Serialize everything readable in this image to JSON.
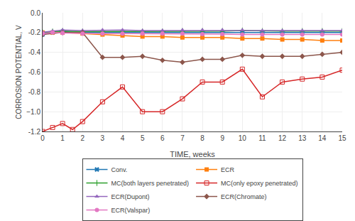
{
  "chart_data": {
    "type": "line",
    "xlabel": "TIME, weeks",
    "ylabel": "CORROSION POTENTIAL, V",
    "xlim": [
      0,
      15
    ],
    "ylim": [
      -1.2,
      0.0
    ],
    "xticks": [
      0,
      1,
      2,
      3,
      4,
      5,
      6,
      7,
      8,
      9,
      10,
      11,
      12,
      13,
      14,
      15
    ],
    "yticks": [
      {
        "value": 0.0,
        "label": "0.0"
      },
      -0.2,
      -0.4,
      -0.6,
      -0.8,
      {
        "value": -1.0,
        "label": "−1.0"
      },
      -1.2
    ],
    "grid": true,
    "legend": "bottom",
    "series": [
      {
        "name": "Conv.",
        "marker": "x",
        "x": [
          0,
          0.5,
          1,
          2,
          3,
          4,
          5,
          6,
          7,
          8,
          9,
          10,
          11,
          12,
          13,
          14,
          15
        ],
        "values": [
          -0.22,
          -0.2,
          -0.19,
          -0.2,
          -0.2,
          -0.2,
          -0.2,
          -0.2,
          -0.2,
          -0.2,
          -0.2,
          -0.2,
          -0.2,
          -0.2,
          -0.2,
          -0.2,
          -0.2
        ]
      },
      {
        "name": "ECR",
        "marker": "square",
        "x": [
          0,
          0.5,
          1,
          2,
          3,
          4,
          5,
          6,
          7,
          8,
          9,
          10,
          11,
          12,
          13,
          14,
          15
        ],
        "values": [
          -0.2,
          -0.2,
          -0.2,
          -0.21,
          -0.22,
          -0.23,
          -0.24,
          -0.24,
          -0.25,
          -0.25,
          -0.25,
          -0.26,
          -0.26,
          -0.27,
          -0.27,
          -0.28,
          -0.28
        ]
      },
      {
        "name": "MC(both layers penetrated)",
        "marker": "cross",
        "x": [
          0,
          0.5,
          1,
          2,
          3,
          4,
          5,
          6,
          7,
          8,
          9,
          10,
          11,
          12,
          13,
          14,
          15
        ],
        "values": [
          -0.2,
          -0.19,
          -0.185,
          -0.19,
          -0.19,
          -0.19,
          -0.19,
          -0.19,
          -0.185,
          -0.185,
          -0.185,
          -0.18,
          -0.185,
          -0.185,
          -0.185,
          -0.185,
          -0.185
        ]
      },
      {
        "name": "MC(only epoxy penetrated)",
        "marker": "square-open",
        "x": [
          0,
          0.5,
          1,
          1.5,
          2,
          3,
          4,
          5,
          6,
          7,
          8,
          9,
          10,
          11,
          12,
          13,
          14,
          15
        ],
        "values": [
          -1.2,
          -1.16,
          -1.12,
          -1.18,
          -1.1,
          -0.9,
          -0.75,
          -1.0,
          -1.0,
          -0.87,
          -0.7,
          -0.7,
          -0.57,
          -0.85,
          -0.7,
          -0.67,
          -0.65,
          -0.58
        ]
      },
      {
        "name": "ECR(Dupont)",
        "marker": "triangle-up",
        "x": [
          0,
          0.5,
          1,
          2,
          3,
          4,
          5,
          6,
          7,
          8,
          9,
          10,
          11,
          12,
          13,
          14,
          15
        ],
        "values": [
          -0.195,
          -0.185,
          -0.175,
          -0.18,
          -0.175,
          -0.175,
          -0.18,
          -0.18,
          -0.175,
          -0.175,
          -0.175,
          -0.175,
          -0.18,
          -0.18,
          -0.18,
          -0.18,
          -0.18
        ]
      },
      {
        "name": "ECR(Chromate)",
        "marker": "diamond",
        "x": [
          0,
          1,
          2,
          3,
          4,
          5,
          6,
          7,
          8,
          9,
          10,
          11,
          12,
          13,
          14,
          15
        ],
        "values": [
          -0.22,
          -0.2,
          -0.2,
          -0.45,
          -0.45,
          -0.44,
          -0.48,
          -0.5,
          -0.47,
          -0.47,
          -0.43,
          -0.44,
          -0.44,
          -0.44,
          -0.42,
          -0.4
        ]
      },
      {
        "name": "ECR(Valspar)",
        "marker": "circle",
        "x": [
          0,
          0.5,
          1,
          2,
          3,
          4,
          5,
          6,
          7,
          8,
          9,
          10,
          11,
          12,
          13,
          14,
          15
        ],
        "values": [
          -0.21,
          -0.2,
          -0.205,
          -0.21,
          -0.21,
          -0.21,
          -0.21,
          -0.21,
          -0.21,
          -0.215,
          -0.215,
          -0.22,
          -0.22,
          -0.22,
          -0.22,
          -0.22,
          -0.22
        ]
      }
    ]
  }
}
